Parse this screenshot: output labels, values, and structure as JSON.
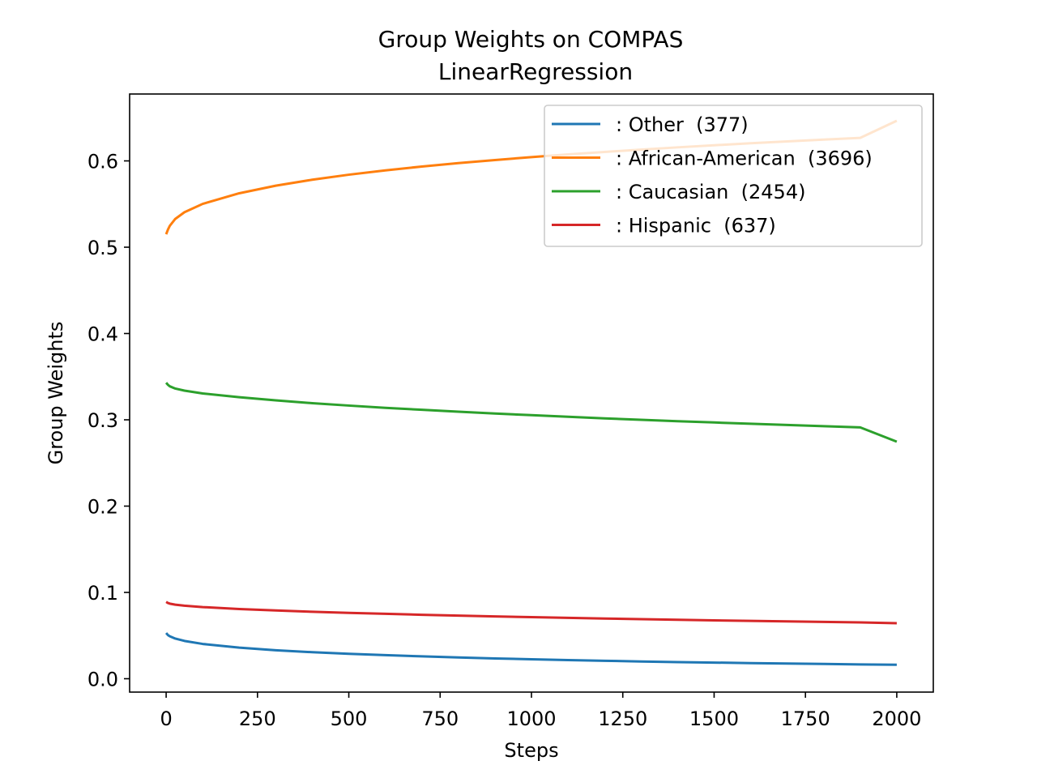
{
  "chart_data": {
    "type": "line",
    "title": "Group Weights on COMPAS",
    "subtitle": "LinearRegression",
    "xlabel": "Steps",
    "ylabel": "Group Weights",
    "xlim": [
      -100,
      2100
    ],
    "ylim": [
      -0.0155,
      0.6775
    ],
    "xticks": [
      0,
      250,
      500,
      750,
      1000,
      1250,
      1500,
      1750,
      2000
    ],
    "xtick_labels": [
      "0",
      "250",
      "500",
      "750",
      "1000",
      "1250",
      "1500",
      "1750",
      "2000"
    ],
    "yticks": [
      0.0,
      0.1,
      0.2,
      0.3,
      0.4,
      0.5,
      0.6
    ],
    "ytick_labels": [
      "0.0",
      "0.1",
      "0.2",
      "0.3",
      "0.4",
      "0.5",
      "0.6"
    ],
    "grid": false,
    "legend_position": "top-right",
    "x": [
      0,
      5,
      10,
      25,
      50,
      100,
      200,
      300,
      400,
      500,
      600,
      700,
      800,
      900,
      1000,
      1100,
      1200,
      1300,
      1400,
      1500,
      1600,
      1700,
      1800,
      1900,
      2000
    ],
    "series": [
      {
        "name": ": Other  (377)",
        "color": "#1f77b4",
        "values": [
          0.053,
          0.0505,
          0.0492,
          0.0465,
          0.0438,
          0.0403,
          0.036,
          0.033,
          0.0307,
          0.0289,
          0.0273,
          0.0259,
          0.0246,
          0.0235,
          0.0225,
          0.0216,
          0.0208,
          0.02,
          0.0193,
          0.0187,
          0.0181,
          0.0176,
          0.0171,
          0.0166,
          0.0162
        ]
      },
      {
        "name": ": African-American  (3696)",
        "color": "#ff7f0e",
        "values": [
          0.515,
          0.5205,
          0.5248,
          0.5328,
          0.5405,
          0.5502,
          0.5625,
          0.5713,
          0.5782,
          0.584,
          0.589,
          0.5935,
          0.5974,
          0.601,
          0.6044,
          0.6075,
          0.6104,
          0.6131,
          0.6157,
          0.6181,
          0.6204,
          0.6226,
          0.6247,
          0.6267,
          0.6465
        ]
      },
      {
        "name": ": Caucasian  (2454)",
        "color": "#2ca02c",
        "values": [
          0.343,
          0.3405,
          0.3388,
          0.3362,
          0.3338,
          0.3305,
          0.3262,
          0.3225,
          0.3193,
          0.3165,
          0.3139,
          0.3116,
          0.3094,
          0.3073,
          0.3054,
          0.3035,
          0.3017,
          0.3,
          0.2984,
          0.2969,
          0.2954,
          0.294,
          0.2926,
          0.2912,
          0.2747
        ]
      },
      {
        "name": ": Hispanic  (637)",
        "color": "#d62728",
        "values": [
          0.089,
          0.0877,
          0.087,
          0.0858,
          0.0846,
          0.083,
          0.0808,
          0.0791,
          0.0776,
          0.0763,
          0.0752,
          0.0741,
          0.0731,
          0.0722,
          0.0713,
          0.0705,
          0.0697,
          0.069,
          0.0683,
          0.0676,
          0.067,
          0.0664,
          0.0658,
          0.0652,
          0.0643
        ]
      }
    ]
  }
}
